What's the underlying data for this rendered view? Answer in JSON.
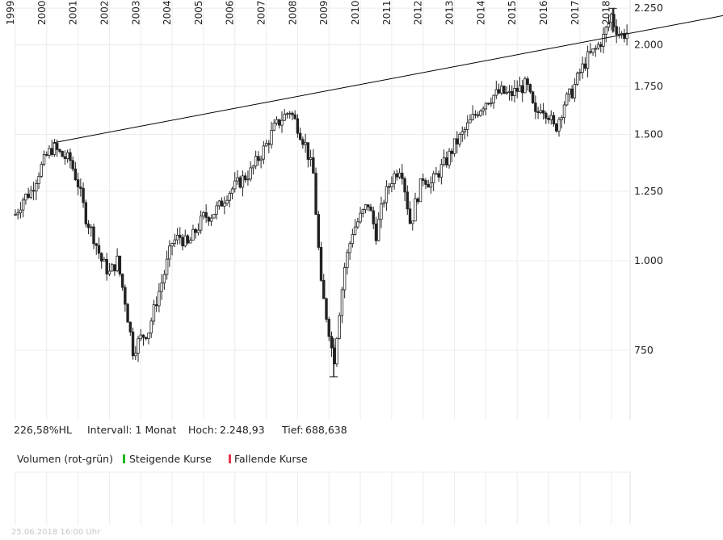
{
  "chart_data": {
    "type": "candlestick",
    "interval_label": "Intervall: 1 Monat",
    "hl_label": "226,58%HL",
    "high_label": "Hoch:",
    "high_value": "2.248,93",
    "low_label": "Tief:",
    "low_value": "688,638",
    "yscale": "log",
    "ylim": [
      600,
      2310
    ],
    "yticks": [
      {
        "value": 750,
        "label": "750"
      },
      {
        "value": 1000,
        "label": "1.000"
      },
      {
        "value": 1250,
        "label": "1.250"
      },
      {
        "value": 1500,
        "label": "1.500"
      },
      {
        "value": 1750,
        "label": "1.750"
      },
      {
        "value": 2000,
        "label": "2.000"
      },
      {
        "value": 2250,
        "label": "2.250"
      }
    ],
    "xlim": [
      1998.95,
      2018.6
    ],
    "xticks": [
      {
        "value": 1999,
        "label": "1999"
      },
      {
        "value": 2000,
        "label": "2000"
      },
      {
        "value": 2001,
        "label": "2001"
      },
      {
        "value": 2002,
        "label": "2002"
      },
      {
        "value": 2003,
        "label": "2003"
      },
      {
        "value": 2004,
        "label": "2004"
      },
      {
        "value": 2005,
        "label": "2005"
      },
      {
        "value": 2006,
        "label": "2006"
      },
      {
        "value": 2007,
        "label": "2007"
      },
      {
        "value": 2008,
        "label": "2008"
      },
      {
        "value": 2009,
        "label": "2009"
      },
      {
        "value": 2010,
        "label": "2010"
      },
      {
        "value": 2011,
        "label": "2011"
      },
      {
        "value": 2012,
        "label": "2012"
      },
      {
        "value": 2013,
        "label": "2013"
      },
      {
        "value": 2014,
        "label": "2014"
      },
      {
        "value": 2015,
        "label": "2015"
      },
      {
        "value": 2016,
        "label": "2016"
      },
      {
        "value": 2017,
        "label": "2017"
      },
      {
        "value": 2018,
        "label": "2018"
      }
    ],
    "grid": true,
    "trendline": {
      "start": {
        "t": 2000.2,
        "v": 1460
      },
      "end": {
        "t": 2018.2,
        "v": 2060
      }
    },
    "close_series": [
      [
        1999.0,
        1160
      ],
      [
        1999.25,
        1220
      ],
      [
        1999.5,
        1250
      ],
      [
        1999.75,
        1330
      ],
      [
        2000.0,
        1400
      ],
      [
        2000.2,
        1440
      ],
      [
        2000.5,
        1400
      ],
      [
        2000.75,
        1380
      ],
      [
        2001.0,
        1280
      ],
      [
        2001.25,
        1150
      ],
      [
        2001.5,
        1080
      ],
      [
        2001.75,
        1000
      ],
      [
        2002.0,
        960
      ],
      [
        2002.25,
        1000
      ],
      [
        2002.5,
        880
      ],
      [
        2002.75,
        750
      ],
      [
        2003.0,
        780
      ],
      [
        2003.25,
        800
      ],
      [
        2003.5,
        880
      ],
      [
        2003.75,
        960
      ],
      [
        2004.0,
        1060
      ],
      [
        2004.25,
        1080
      ],
      [
        2004.5,
        1050
      ],
      [
        2004.75,
        1100
      ],
      [
        2005.0,
        1150
      ],
      [
        2005.25,
        1160
      ],
      [
        2005.5,
        1190
      ],
      [
        2005.75,
        1240
      ],
      [
        2006.0,
        1270
      ],
      [
        2006.25,
        1300
      ],
      [
        2006.5,
        1330
      ],
      [
        2006.75,
        1390
      ],
      [
        2007.0,
        1450
      ],
      [
        2007.25,
        1530
      ],
      [
        2007.5,
        1580
      ],
      [
        2007.75,
        1620
      ],
      [
        2008.0,
        1540
      ],
      [
        2008.25,
        1450
      ],
      [
        2008.5,
        1320
      ],
      [
        2008.75,
        920
      ],
      [
        2009.0,
        800
      ],
      [
        2009.15,
        720
      ],
      [
        2009.3,
        830
      ],
      [
        2009.5,
        980
      ],
      [
        2009.75,
        1100
      ],
      [
        2010.0,
        1150
      ],
      [
        2010.25,
        1200
      ],
      [
        2010.5,
        1090
      ],
      [
        2010.75,
        1220
      ],
      [
        2011.0,
        1300
      ],
      [
        2011.3,
        1360
      ],
      [
        2011.6,
        1120
      ],
      [
        2011.75,
        1200
      ],
      [
        2012.0,
        1310
      ],
      [
        2012.25,
        1280
      ],
      [
        2012.5,
        1330
      ],
      [
        2012.75,
        1380
      ],
      [
        2013.0,
        1450
      ],
      [
        2013.25,
        1500
      ],
      [
        2013.5,
        1560
      ],
      [
        2013.75,
        1620
      ],
      [
        2014.0,
        1670
      ],
      [
        2014.25,
        1700
      ],
      [
        2014.5,
        1720
      ],
      [
        2014.75,
        1700
      ],
      [
        2015.0,
        1730
      ],
      [
        2015.3,
        1760
      ],
      [
        2015.6,
        1580
      ],
      [
        2015.75,
        1650
      ],
      [
        2016.0,
        1600
      ],
      [
        2016.2,
        1520
      ],
      [
        2016.5,
        1660
      ],
      [
        2016.75,
        1720
      ],
      [
        2017.0,
        1830
      ],
      [
        2017.25,
        1920
      ],
      [
        2017.5,
        1970
      ],
      [
        2017.75,
        2050
      ],
      [
        2018.0,
        2200
      ],
      [
        2018.1,
        2130
      ],
      [
        2018.3,
        2060
      ],
      [
        2018.5,
        2080
      ]
    ],
    "volume": {
      "title": "Volumen (rot-grün)",
      "legend": [
        {
          "label": "Steigende Kurse",
          "color": "#1db81d"
        },
        {
          "label": "Fallende Kurse",
          "color": "#e8334a"
        }
      ]
    },
    "timestamp": "25.06.2018 16:00 Uhr"
  }
}
